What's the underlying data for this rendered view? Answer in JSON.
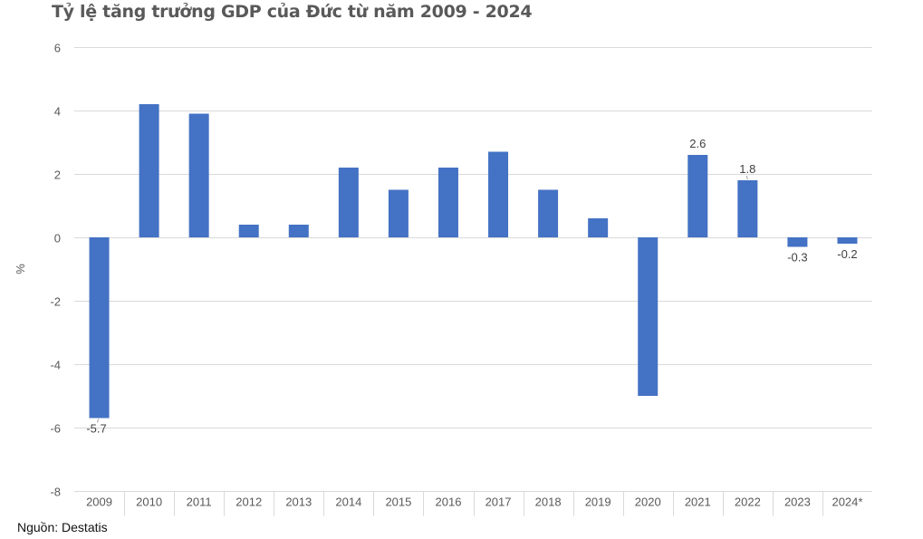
{
  "title": "Tỷ lệ tăng trưởng GDP của Đức từ năm 2009 - 2024",
  "source": "Nguồn: Destatis",
  "colors": {
    "bar": "#4472C4",
    "grid": "#D9D9D9",
    "axis_text": "#595959",
    "title": "#595959"
  },
  "chart_data": {
    "type": "bar",
    "title": "Tỷ lệ tăng trưởng GDP của Đức từ năm 2009 - 2024",
    "xlabel": "",
    "ylabel": "%",
    "ylim": [
      -8,
      6
    ],
    "yticks": [
      6,
      4,
      2,
      0,
      -2,
      -4,
      -6,
      -8
    ],
    "ytick_labels": [
      "6",
      "4",
      "2",
      "0",
      "-2",
      "-4",
      "-6",
      "-8"
    ],
    "grid": true,
    "legend": "none",
    "categories": [
      "2009",
      "2010",
      "2011",
      "2012",
      "2013",
      "2014",
      "2015",
      "2016",
      "2017",
      "2018",
      "2019",
      "2020",
      "2021",
      "2022",
      "2023",
      "2024*"
    ],
    "values": [
      -5.7,
      4.2,
      3.9,
      0.4,
      0.4,
      2.2,
      1.5,
      2.2,
      2.7,
      1.5,
      0.6,
      -5.0,
      2.6,
      1.8,
      -0.3,
      -0.2
    ],
    "data_labels": [
      {
        "category": "2009",
        "text": "-5.7"
      },
      {
        "category": "2021",
        "text": "2.6"
      },
      {
        "category": "2022",
        "text": "1.8"
      },
      {
        "category": "2023",
        "text": "-0.3"
      },
      {
        "category": "2024*",
        "text": "-0.2"
      }
    ]
  }
}
